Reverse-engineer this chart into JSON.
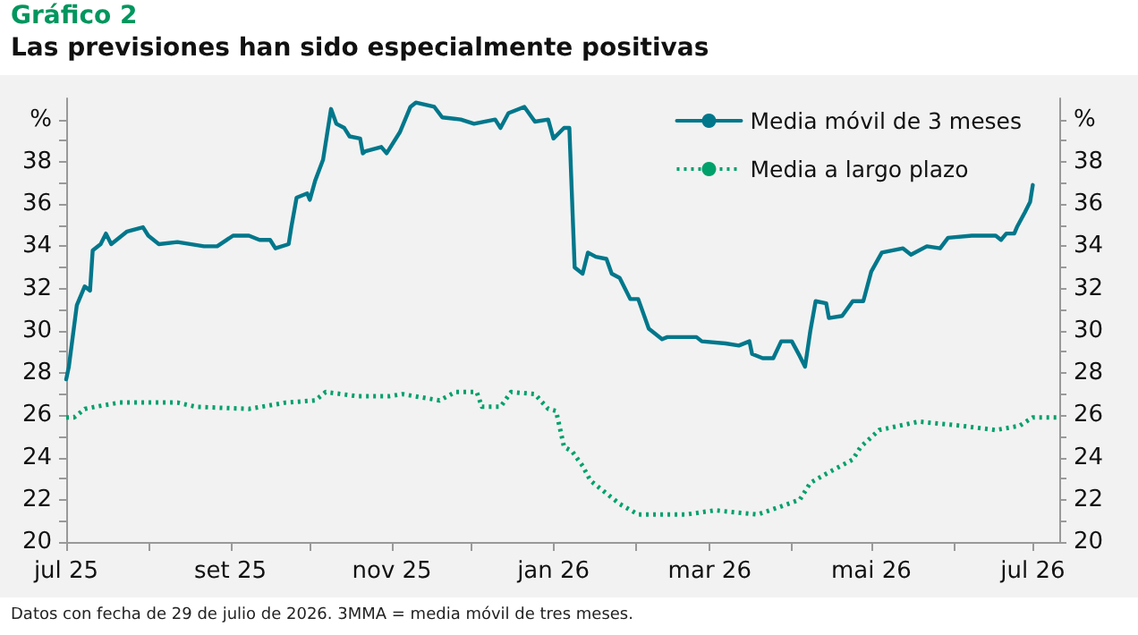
{
  "chart_data": {
    "type": "line",
    "title": "Gráfico 2",
    "subtitle": "Las previsiones han sido especialmente positivas",
    "annotations": [
      "Datos con fecha de 29 de julio de 2026. 3MMA = media móvil de tres meses."
    ],
    "xlim": [
      "2025-07-01",
      "2026-07-11"
    ],
    "xticks": [
      {
        "value": "2025-07-01",
        "label": "jul 25"
      },
      {
        "value": "2025-08-01",
        "label": null
      },
      {
        "value": "2025-09-01",
        "label": "set 25"
      },
      {
        "value": "2025-10-01",
        "label": null
      },
      {
        "value": "2025-11-01",
        "label": "nov 25"
      },
      {
        "value": "2025-12-01",
        "label": null
      },
      {
        "value": "2026-01-01",
        "label": "jan 26"
      },
      {
        "value": "2026-02-01",
        "label": null
      },
      {
        "value": "2026-03-01",
        "label": "mar 26"
      },
      {
        "value": "2026-04-01",
        "label": null
      },
      {
        "value": "2026-05-01",
        "label": "mai 26"
      },
      {
        "value": "2026-06-01",
        "label": null
      },
      {
        "value": "2026-07-01",
        "label": "jul 26"
      }
    ],
    "ylim": [
      20,
      41
    ],
    "yticks": [
      20,
      {
        "value": 21,
        "label": null
      },
      22,
      {
        "value": 23,
        "label": null
      },
      24,
      {
        "value": 25,
        "label": null
      },
      26,
      {
        "value": 27,
        "label": null
      },
      28,
      {
        "value": 29,
        "label": null
      },
      30,
      {
        "value": 31,
        "label": null
      },
      32,
      {
        "value": 33,
        "label": null
      },
      34,
      {
        "value": 35,
        "label": null
      },
      36,
      {
        "value": 37,
        "label": null
      },
      38,
      {
        "value": 39,
        "label": null
      },
      {
        "value": 40,
        "label": "%"
      }
    ],
    "y2lim": [
      20,
      41
    ],
    "y2ticks": [
      20,
      {
        "value": 21,
        "label": null
      },
      22,
      {
        "value": 23,
        "label": null
      },
      24,
      {
        "value": 25,
        "label": null
      },
      26,
      {
        "value": 27,
        "label": null
      },
      28,
      {
        "value": 29,
        "label": null
      },
      30,
      {
        "value": 31,
        "label": null
      },
      32,
      {
        "value": 33,
        "label": null
      },
      34,
      {
        "value": 35,
        "label": null
      },
      36,
      {
        "value": 37,
        "label": null
      },
      38,
      {
        "value": 39,
        "label": null
      },
      {
        "value": 40,
        "label": "%"
      }
    ],
    "grid": false,
    "legend": "top right",
    "marker": "none",
    "series": [
      {
        "name": "Media móvil de 3 meses",
        "color": "#00778b",
        "line_style": "solid",
        "x": [
          "2025-07-01",
          "2025-07-02",
          "2025-07-05",
          "2025-07-08",
          "2025-07-10",
          "2025-07-11",
          "2025-07-14",
          "2025-07-16",
          "2025-07-18",
          "2025-07-24",
          "2025-07-30",
          "2025-08-01",
          "2025-08-05",
          "2025-08-12",
          "2025-08-22",
          "2025-08-27",
          "2025-09-02",
          "2025-09-08",
          "2025-09-12",
          "2025-09-16",
          "2025-09-18",
          "2025-09-23",
          "2025-09-24",
          "2025-09-26",
          "2025-09-30",
          "2025-10-01",
          "2025-10-03",
          "2025-10-06",
          "2025-10-09",
          "2025-10-11",
          "2025-10-14",
          "2025-10-16",
          "2025-10-20",
          "2025-10-21",
          "2025-10-22",
          "2025-10-28",
          "2025-10-30",
          "2025-11-04",
          "2025-11-08",
          "2025-11-10",
          "2025-11-17",
          "2025-11-20",
          "2025-11-27",
          "2025-12-02",
          "2025-12-10",
          "2025-12-12",
          "2025-12-15",
          "2025-12-21",
          "2025-12-25",
          "2025-12-30",
          "2026-01-01",
          "2026-01-05",
          "2026-01-07",
          "2026-01-09",
          "2026-01-12",
          "2026-01-14",
          "2026-01-17",
          "2026-01-21",
          "2026-01-23",
          "2026-01-26",
          "2026-01-30",
          "2026-02-02",
          "2026-02-06",
          "2026-02-11",
          "2026-02-13",
          "2026-02-24",
          "2026-02-26",
          "2026-03-07",
          "2026-03-12",
          "2026-03-16",
          "2026-03-17",
          "2026-03-21",
          "2026-03-25",
          "2026-03-28",
          "2026-04-01",
          "2026-04-04",
          "2026-04-06",
          "2026-04-08",
          "2026-04-10",
          "2026-04-14",
          "2026-04-15",
          "2026-04-20",
          "2026-04-24",
          "2026-04-28",
          "2026-05-01",
          "2026-05-05",
          "2026-05-13",
          "2026-05-16",
          "2026-05-22",
          "2026-05-27",
          "2026-05-30",
          "2026-06-08",
          "2026-06-17",
          "2026-06-19",
          "2026-06-21",
          "2026-06-24",
          "2026-06-25",
          "2026-06-28",
          "2026-06-30",
          "2026-07-01"
        ],
        "values": [
          27.7,
          28.3,
          31.2,
          32.1,
          31.9,
          33.8,
          34.1,
          34.6,
          34.1,
          34.7,
          34.9,
          34.5,
          34.1,
          34.2,
          34.0,
          34.0,
          34.5,
          34.5,
          34.3,
          34.3,
          33.9,
          34.1,
          34.9,
          36.3,
          36.5,
          36.2,
          37.1,
          38.1,
          40.5,
          39.8,
          39.6,
          39.2,
          39.1,
          38.4,
          38.5,
          38.7,
          38.4,
          39.4,
          40.6,
          40.8,
          40.6,
          40.1,
          40.0,
          39.8,
          40.0,
          39.6,
          40.3,
          40.6,
          39.9,
          40.0,
          39.1,
          39.6,
          39.6,
          33.0,
          32.7,
          33.7,
          33.5,
          33.4,
          32.7,
          32.5,
          31.5,
          31.5,
          30.1,
          29.6,
          29.7,
          29.7,
          29.5,
          29.4,
          29.3,
          29.5,
          28.9,
          28.7,
          28.7,
          29.5,
          29.5,
          28.8,
          28.3,
          30.0,
          31.4,
          31.3,
          30.6,
          30.7,
          31.4,
          31.4,
          32.8,
          33.7,
          33.9,
          33.6,
          34.0,
          33.9,
          34.4,
          34.5,
          34.5,
          34.3,
          34.6,
          34.6,
          34.9,
          35.6,
          36.1,
          36.9
        ]
      },
      {
        "name": "Media a largo plazo",
        "color": "#00a06b",
        "line_style": "dotted",
        "x": [
          "2025-07-01",
          "2025-07-04",
          "2025-07-08",
          "2025-07-12",
          "2025-07-21",
          "2025-08-12",
          "2025-08-19",
          "2025-09-08",
          "2025-09-22",
          "2025-10-03",
          "2025-10-07",
          "2025-10-19",
          "2025-10-31",
          "2025-11-05",
          "2025-11-19",
          "2025-11-25",
          "2025-12-03",
          "2025-12-05",
          "2025-12-12",
          "2025-12-16",
          "2025-12-25",
          "2025-12-30",
          "2026-01-02",
          "2026-01-05",
          "2026-01-08",
          "2026-01-12",
          "2026-01-15",
          "2026-01-20",
          "2026-01-26",
          "2026-02-02",
          "2026-02-20",
          "2026-03-03",
          "2026-03-19",
          "2026-03-26",
          "2026-04-04",
          "2026-04-08",
          "2026-04-15",
          "2026-04-24",
          "2026-04-27",
          "2026-05-04",
          "2026-05-19",
          "2026-06-04",
          "2026-06-17",
          "2026-06-26",
          "2026-07-01",
          "2026-07-11"
        ],
        "values": [
          25.9,
          25.9,
          26.3,
          26.4,
          26.6,
          26.6,
          26.4,
          26.3,
          26.6,
          26.7,
          27.1,
          26.9,
          26.9,
          27.0,
          26.7,
          27.1,
          27.1,
          26.4,
          26.4,
          27.1,
          27.0,
          26.3,
          26.2,
          24.5,
          24.3,
          23.6,
          22.9,
          22.4,
          21.8,
          21.3,
          21.3,
          21.5,
          21.3,
          21.6,
          22.0,
          22.8,
          23.3,
          23.9,
          24.5,
          25.3,
          25.7,
          25.5,
          25.3,
          25.5,
          25.9,
          25.9
        ]
      }
    ]
  }
}
